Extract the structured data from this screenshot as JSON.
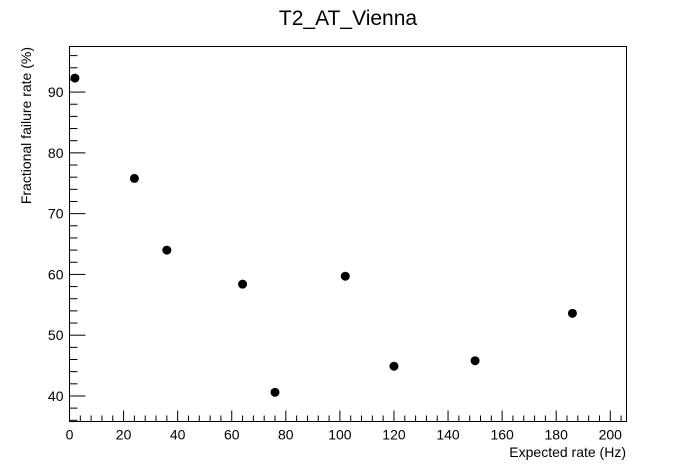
{
  "chart_data": {
    "type": "scatter",
    "title": "T2_AT_Vienna",
    "xlabel": "Expected rate (Hz)",
    "ylabel": "Fractional failure rate (%)",
    "xlim": [
      0,
      206
    ],
    "ylim": [
      35.8,
      97.5
    ],
    "grid": false,
    "xticks": [
      0,
      20,
      40,
      60,
      80,
      100,
      120,
      140,
      160,
      180,
      200
    ],
    "yticks": [
      40,
      50,
      60,
      70,
      80,
      90
    ],
    "series": [
      {
        "marker_color": "#000000",
        "points": [
          {
            "x": 2,
            "y": 92.3
          },
          {
            "x": 24,
            "y": 75.8
          },
          {
            "x": 36,
            "y": 64.0
          },
          {
            "x": 64,
            "y": 58.4
          },
          {
            "x": 76,
            "y": 40.6
          },
          {
            "x": 102,
            "y": 59.7
          },
          {
            "x": 120,
            "y": 44.9
          },
          {
            "x": 150,
            "y": 45.8
          },
          {
            "x": 186,
            "y": 53.6
          }
        ]
      }
    ]
  }
}
